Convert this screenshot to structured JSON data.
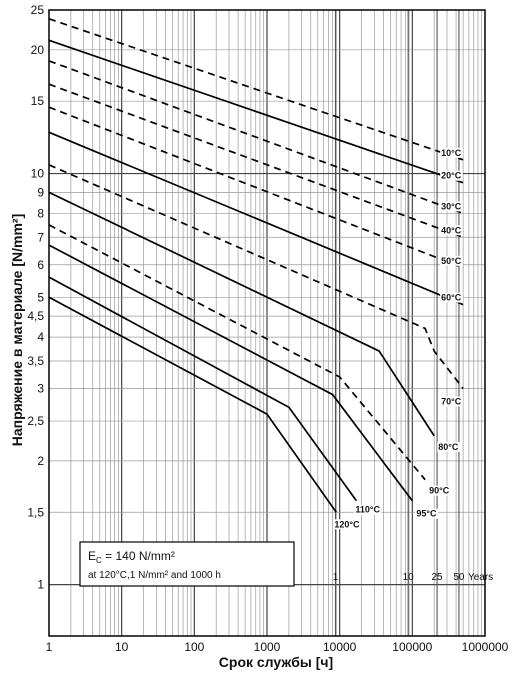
{
  "chart_data": {
    "type": "line",
    "title": "",
    "xlabel": "Срок службы  [ч]",
    "ylabel": "Напряжение в материале [N/mm²]",
    "x_scale": "log",
    "y_scale": "log",
    "xlim": [
      1,
      1000000
    ],
    "ylim": [
      0.75,
      25
    ],
    "grid": true,
    "x_ticks": [
      "1",
      "10",
      "100",
      "1000",
      "10000",
      "100000",
      "1000000"
    ],
    "y_ticks": [
      {
        "value": 1,
        "label": "1"
      },
      {
        "value": 1.5,
        "label": "1,5"
      },
      {
        "value": 2,
        "label": "2"
      },
      {
        "value": 2.5,
        "label": "2,5"
      },
      {
        "value": 3,
        "label": "3"
      },
      {
        "value": 3.5,
        "label": "3,5"
      },
      {
        "value": 4,
        "label": "4"
      },
      {
        "value": 4.5,
        "label": "4,5"
      },
      {
        "value": 5,
        "label": "5"
      },
      {
        "value": 6,
        "label": "6"
      },
      {
        "value": 7,
        "label": "7"
      },
      {
        "value": 8,
        "label": "8"
      },
      {
        "value": 9,
        "label": "9"
      },
      {
        "value": 10,
        "label": "10"
      },
      {
        "value": 15,
        "label": "15"
      },
      {
        "value": 20,
        "label": "20"
      },
      {
        "value": 25,
        "label": "25"
      }
    ],
    "series": [
      {
        "name": "10°C",
        "style": "dashed",
        "points": [
          [
            1,
            23.8
          ],
          [
            500000,
            10.8
          ]
        ]
      },
      {
        "name": "20°C",
        "style": "solid",
        "points": [
          [
            1,
            21.1
          ],
          [
            500000,
            9.5
          ]
        ]
      },
      {
        "name": "30°C",
        "style": "dashed",
        "points": [
          [
            1,
            18.8
          ],
          [
            500000,
            8.0
          ]
        ]
      },
      {
        "name": "40°C",
        "style": "dashed",
        "points": [
          [
            1,
            16.5
          ],
          [
            500000,
            7.0
          ]
        ]
      },
      {
        "name": "50°C",
        "style": "dashed",
        "points": [
          [
            1,
            14.5
          ],
          [
            500000,
            5.9
          ]
        ]
      },
      {
        "name": "60°C",
        "style": "solid",
        "points": [
          [
            1,
            12.6
          ],
          [
            500000,
            4.8
          ]
        ]
      },
      {
        "name": "70°C",
        "style": "dashed",
        "points": [
          [
            1,
            10.5
          ],
          [
            150000,
            4.2
          ],
          [
            200000,
            3.7
          ],
          [
            500000,
            3.0
          ]
        ]
      },
      {
        "name": "80°C",
        "style": "solid",
        "points": [
          [
            1,
            9.0
          ],
          [
            35000,
            3.7
          ],
          [
            200000,
            2.3
          ]
        ]
      },
      {
        "name": "90°C",
        "style": "dashed",
        "points": [
          [
            1,
            7.5
          ],
          [
            10000,
            3.2
          ],
          [
            150000,
            1.8
          ]
        ]
      },
      {
        "name": "95°C",
        "style": "solid",
        "points": [
          [
            1,
            6.7
          ],
          [
            8000,
            2.9
          ],
          [
            100000,
            1.6
          ]
        ]
      },
      {
        "name": "110°C",
        "style": "solid",
        "points": [
          [
            1,
            5.6
          ],
          [
            2000,
            2.7
          ],
          [
            17000,
            1.6
          ]
        ]
      },
      {
        "name": "120°C",
        "style": "solid",
        "points": [
          [
            1,
            5.0
          ],
          [
            1000,
            2.6
          ],
          [
            9000,
            1.5
          ]
        ]
      }
    ],
    "year_marks": [
      {
        "label": "1",
        "hours": 8760
      },
      {
        "label": "10",
        "hours": 87600
      },
      {
        "label": "25",
        "hours": 219000
      },
      {
        "label": "50",
        "hours": 438000
      }
    ],
    "year_unit": "Years",
    "annotation": {
      "line1_main": "E",
      "line1_sub": "C",
      "line1_rest": " = 140 N/mm²",
      "line2": "at 120°C,1 N/mm² and 1000 h"
    }
  }
}
